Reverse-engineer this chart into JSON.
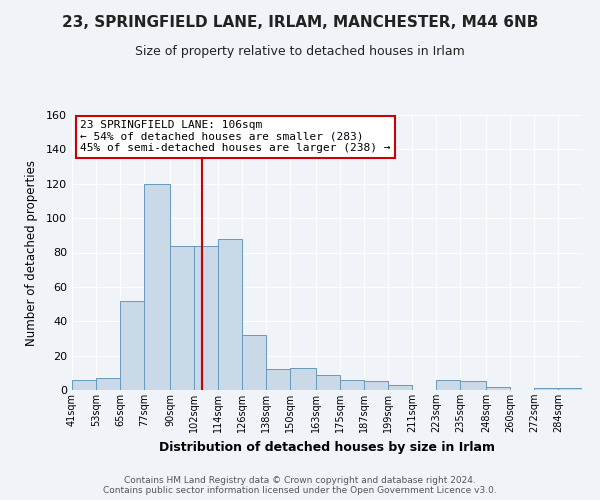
{
  "title_line1": "23, SPRINGFIELD LANE, IRLAM, MANCHESTER, M44 6NB",
  "title_line2": "Size of property relative to detached houses in Irlam",
  "xlabel": "Distribution of detached houses by size in Irlam",
  "ylabel": "Number of detached properties",
  "bin_labels": [
    "41sqm",
    "53sqm",
    "65sqm",
    "77sqm",
    "90sqm",
    "102sqm",
    "114sqm",
    "126sqm",
    "138sqm",
    "150sqm",
    "163sqm",
    "175sqm",
    "187sqm",
    "199sqm",
    "211sqm",
    "223sqm",
    "235sqm",
    "248sqm",
    "260sqm",
    "272sqm",
    "284sqm"
  ],
  "bin_edges": [
    41,
    53,
    65,
    77,
    90,
    102,
    114,
    126,
    138,
    150,
    163,
    175,
    187,
    199,
    211,
    223,
    235,
    248,
    260,
    272,
    284,
    296
  ],
  "bar_heights": [
    6,
    7,
    52,
    120,
    84,
    84,
    88,
    32,
    12,
    13,
    9,
    6,
    5,
    3,
    0,
    6,
    5,
    2,
    0,
    1,
    1
  ],
  "bar_face_color": "#c9d9e8",
  "bar_edge_color": "#6699bb",
  "property_value": 106,
  "vline_color": "#cc0000",
  "annotation_text": "23 SPRINGFIELD LANE: 106sqm\n← 54% of detached houses are smaller (283)\n45% of semi-detached houses are larger (238) →",
  "annotation_box_color": "#ffffff",
  "annotation_box_edgecolor": "#cc0000",
  "ylim": [
    0,
    160
  ],
  "yticks": [
    0,
    20,
    40,
    60,
    80,
    100,
    120,
    140,
    160
  ],
  "footer_text": "Contains HM Land Registry data © Crown copyright and database right 2024.\nContains public sector information licensed under the Open Government Licence v3.0.",
  "bg_color": "#f0f4f8",
  "grid_color": "#ffffff",
  "title_fontsize": 11,
  "subtitle_fontsize": 9
}
